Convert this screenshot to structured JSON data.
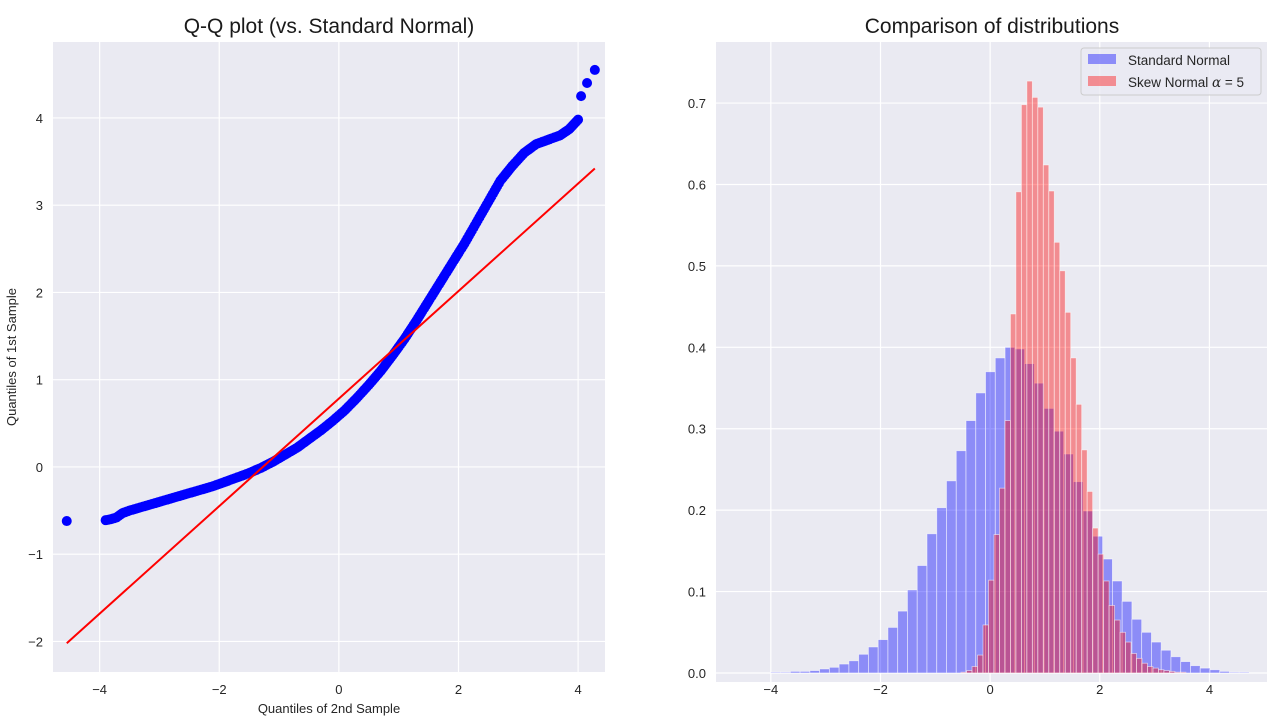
{
  "figure": {
    "background": "#ffffff",
    "axes_facecolor": "#eaeaf2",
    "grid_color": "#ffffff"
  },
  "chart_data": [
    {
      "type": "scatter",
      "title": "Q-Q plot (vs. Standard Normal)",
      "xlabel": "Quantiles of 2nd Sample",
      "ylabel": "Quantiles of 1st Sample",
      "xlim": [
        -4.78,
        4.45
      ],
      "ylim": [
        -2.35,
        4.87
      ],
      "xticks": [
        -4,
        -2,
        0,
        2,
        4
      ],
      "xtick_labels": [
        "−4",
        "−2",
        "0",
        "2",
        "4"
      ],
      "yticks": [
        -2,
        -1,
        0,
        1,
        2,
        3,
        4
      ],
      "ytick_labels": [
        "−2",
        "−1",
        "0",
        "1",
        "2",
        "3",
        "4"
      ],
      "grid": true,
      "marker_color": "#0000ff",
      "line_color": "#ff0000",
      "points": [
        [
          -4.55,
          -0.62
        ],
        [
          -3.9,
          -0.61
        ],
        [
          -3.82,
          -0.6
        ],
        [
          -3.72,
          -0.58
        ],
        [
          -3.62,
          -0.53
        ],
        [
          -3.5,
          -0.5
        ],
        [
          -3.3,
          -0.46
        ],
        [
          -3.1,
          -0.42
        ],
        [
          -2.9,
          -0.38
        ],
        [
          -2.7,
          -0.34
        ],
        [
          -2.5,
          -0.3
        ],
        [
          -2.3,
          -0.26
        ],
        [
          -2.1,
          -0.22
        ],
        [
          -1.9,
          -0.17
        ],
        [
          -1.7,
          -0.12
        ],
        [
          -1.5,
          -0.07
        ],
        [
          -1.3,
          -0.01
        ],
        [
          -1.1,
          0.06
        ],
        [
          -0.9,
          0.14
        ],
        [
          -0.7,
          0.22
        ],
        [
          -0.5,
          0.32
        ],
        [
          -0.3,
          0.42
        ],
        [
          -0.1,
          0.53
        ],
        [
          0.1,
          0.65
        ],
        [
          0.3,
          0.79
        ],
        [
          0.5,
          0.94
        ],
        [
          0.7,
          1.1
        ],
        [
          0.9,
          1.28
        ],
        [
          1.1,
          1.47
        ],
        [
          1.3,
          1.68
        ],
        [
          1.5,
          1.9
        ],
        [
          1.7,
          2.12
        ],
        [
          1.9,
          2.34
        ],
        [
          2.1,
          2.56
        ],
        [
          2.3,
          2.8
        ],
        [
          2.5,
          3.04
        ],
        [
          2.7,
          3.28
        ],
        [
          2.9,
          3.45
        ],
        [
          3.1,
          3.6
        ],
        [
          3.3,
          3.7
        ],
        [
          3.5,
          3.75
        ],
        [
          3.7,
          3.8
        ],
        [
          3.85,
          3.87
        ],
        [
          4.0,
          3.98
        ],
        [
          4.05,
          4.25
        ],
        [
          4.15,
          4.4
        ],
        [
          4.28,
          4.55
        ]
      ],
      "reference_line": {
        "x": [
          -4.55,
          4.28
        ],
        "y": [
          -2.02,
          3.42
        ]
      }
    },
    {
      "type": "bar",
      "subtype": "histogram",
      "title": "Comparison of distributions",
      "xlabel": "",
      "ylabel": "",
      "xlim": [
        -5.0,
        5.05
      ],
      "ylim": [
        0.0,
        0.775
      ],
      "xticks": [
        -4,
        -2,
        0,
        2,
        4
      ],
      "xtick_labels": [
        "−4",
        "−2",
        "0",
        "2",
        "4"
      ],
      "yticks": [
        0.0,
        0.1,
        0.2,
        0.3,
        0.4,
        0.5,
        0.6,
        0.7
      ],
      "ytick_labels": [
        "0.0",
        "0.1",
        "0.2",
        "0.3",
        "0.4",
        "0.5",
        "0.6",
        "0.7"
      ],
      "grid": true,
      "legend": {
        "position": "upper right",
        "entries": [
          {
            "label": "Standard Normal",
            "color": "#0000ff",
            "alpha": 0.4
          },
          {
            "label": "Skew Normal α = 5",
            "label_prefix": "Skew Normal ",
            "label_math": "α",
            "label_suffix": " = 5",
            "color": "#ff0000",
            "alpha": 0.4
          }
        ]
      },
      "series": [
        {
          "name": "Standard Normal",
          "color": "#0000ff",
          "alpha": 0.4,
          "bin_start": -4.0,
          "bin_width": 0.178,
          "values": [
            0.001,
            0.001,
            0.002,
            0.002,
            0.003,
            0.005,
            0.007,
            0.011,
            0.015,
            0.023,
            0.032,
            0.041,
            0.056,
            0.076,
            0.102,
            0.132,
            0.171,
            0.203,
            0.236,
            0.273,
            0.31,
            0.344,
            0.37,
            0.387,
            0.4,
            0.398,
            0.38,
            0.356,
            0.325,
            0.297,
            0.269,
            0.235,
            0.199,
            0.168,
            0.14,
            0.113,
            0.088,
            0.066,
            0.05,
            0.038,
            0.028,
            0.02,
            0.014,
            0.009,
            0.006,
            0.004,
            0.002,
            0.001,
            0.001
          ]
        },
        {
          "name": "Skew Normal α = 5",
          "color": "#ff0000",
          "alpha": 0.4,
          "bin_start": -0.53,
          "bin_width": 0.1,
          "values": [
            0.001,
            0.003,
            0.008,
            0.022,
            0.059,
            0.114,
            0.17,
            0.227,
            0.31,
            0.441,
            0.591,
            0.698,
            0.727,
            0.707,
            0.695,
            0.624,
            0.592,
            0.529,
            0.494,
            0.443,
            0.387,
            0.33,
            0.274,
            0.223,
            0.178,
            0.146,
            0.113,
            0.083,
            0.065,
            0.05,
            0.038,
            0.024,
            0.018,
            0.012,
            0.008,
            0.006,
            0.004,
            0.003,
            0.002,
            0.001,
            0.001
          ]
        }
      ]
    }
  ]
}
